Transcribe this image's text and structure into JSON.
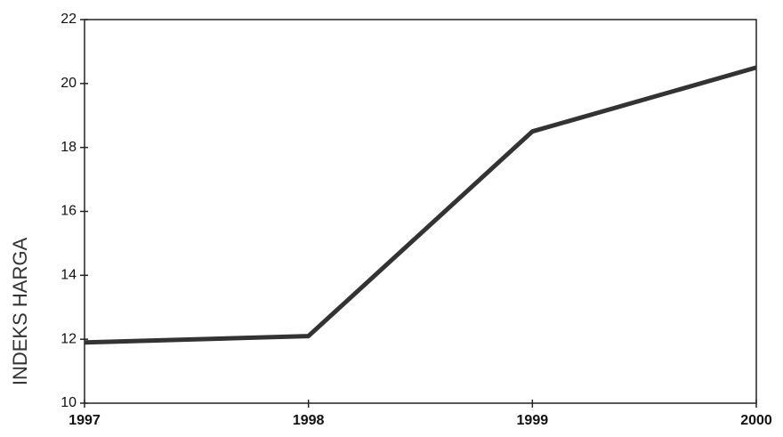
{
  "chart_data": {
    "type": "line",
    "ylabel": "INDEKS HARGA",
    "x": [
      1997,
      1998,
      1999,
      2000
    ],
    "values": [
      11.9,
      12.1,
      18.5,
      20.5
    ],
    "color": "#333333",
    "xlim": [
      1997,
      2000
    ],
    "xticks": [
      1997,
      1998,
      1999,
      2000
    ],
    "ylim": [
      10,
      22
    ],
    "yticks": [
      10,
      12,
      14,
      16,
      18,
      20,
      22
    ]
  }
}
